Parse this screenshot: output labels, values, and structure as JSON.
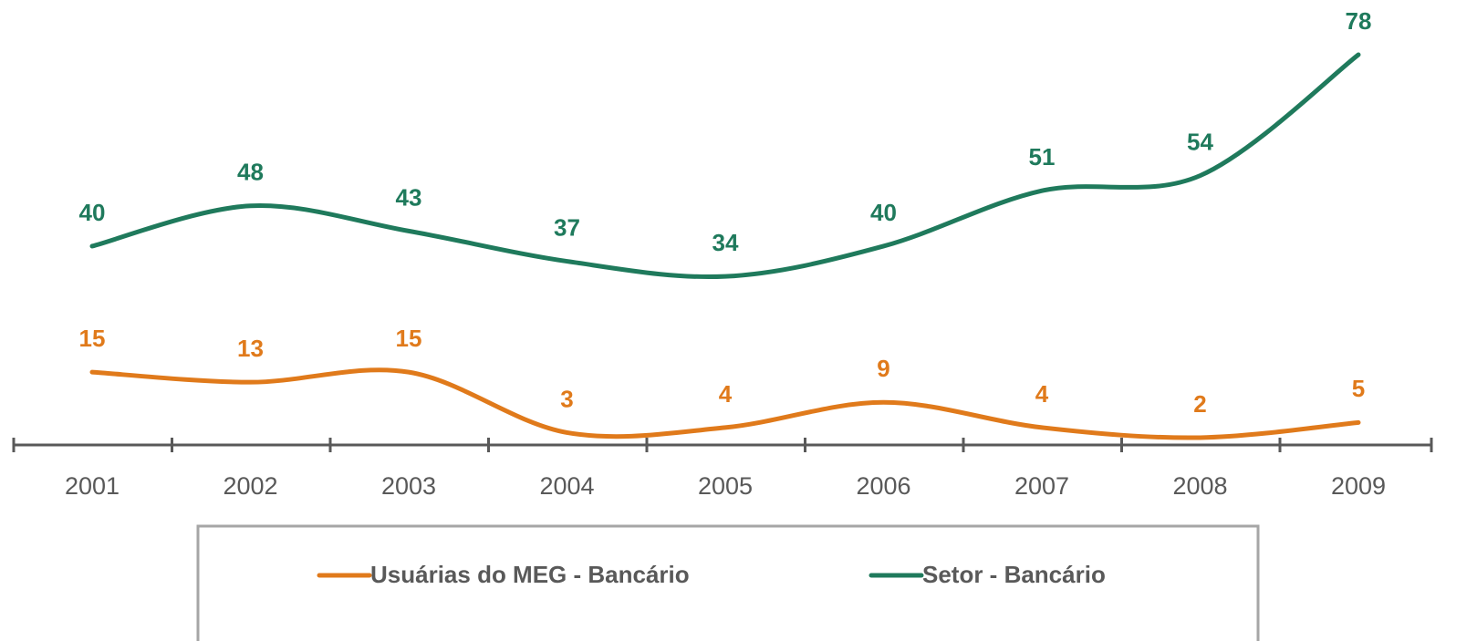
{
  "chart_data": {
    "type": "line",
    "categories": [
      "2001",
      "2002",
      "2003",
      "2004",
      "2005",
      "2006",
      "2007",
      "2008",
      "2009"
    ],
    "series": [
      {
        "name": "Usuárias do MEG - Bancário",
        "color": "#e07a1b",
        "values": [
          15,
          13,
          15,
          3,
          4,
          9,
          4,
          2,
          5
        ]
      },
      {
        "name": "Setor - Bancário",
        "color": "#1f7a5c",
        "values": [
          40,
          48,
          43,
          37,
          34,
          40,
          51,
          54,
          78
        ]
      }
    ],
    "smooth": true,
    "legend": "bottom"
  }
}
